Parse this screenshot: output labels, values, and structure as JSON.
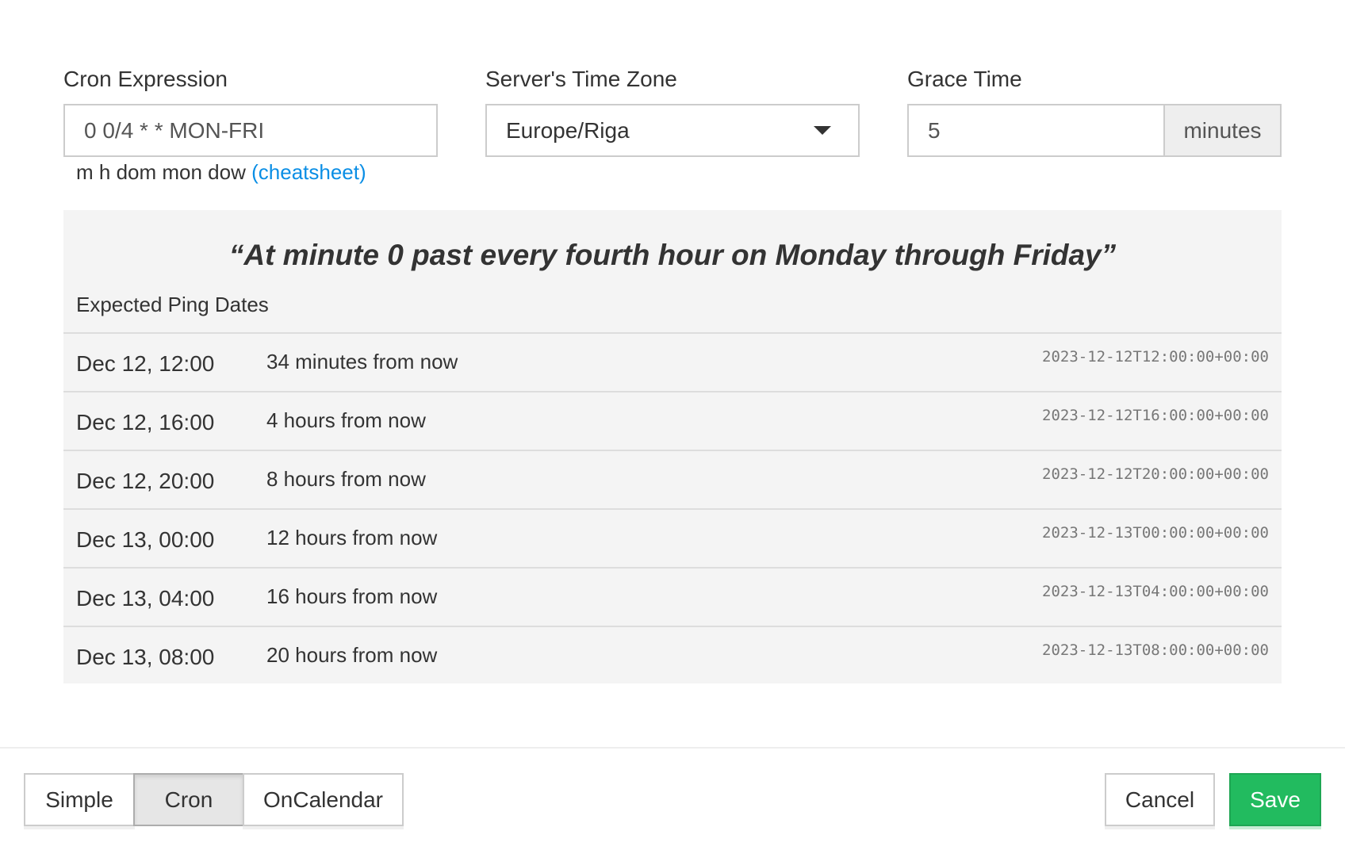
{
  "cron": {
    "label": "Cron Expression",
    "value": "0 0/4 * * MON-FRI",
    "help": "m h dom mon dow",
    "cheatsheet": "(cheatsheet)"
  },
  "timezone": {
    "label": "Server's Time Zone",
    "value": "Europe/Riga",
    "icon": "caret-down-icon"
  },
  "grace": {
    "label": "Grace Time",
    "value": "5",
    "unit": "minutes"
  },
  "preview": {
    "description": "“At minute 0 past every fourth hour on Monday through Friday”",
    "heading": "Expected Ping Dates",
    "rows": [
      {
        "date": "Dec 12, 12:00",
        "relative": "34 minutes from now",
        "iso": "2023-12-12T12:00:00+00:00"
      },
      {
        "date": "Dec 12, 16:00",
        "relative": "4 hours from now",
        "iso": "2023-12-12T16:00:00+00:00"
      },
      {
        "date": "Dec 12, 20:00",
        "relative": "8 hours from now",
        "iso": "2023-12-12T20:00:00+00:00"
      },
      {
        "date": "Dec 13, 00:00",
        "relative": "12 hours from now",
        "iso": "2023-12-13T00:00:00+00:00"
      },
      {
        "date": "Dec 13, 04:00",
        "relative": "16 hours from now",
        "iso": "2023-12-13T04:00:00+00:00"
      },
      {
        "date": "Dec 13, 08:00",
        "relative": "20 hours from now",
        "iso": "2023-12-13T08:00:00+00:00"
      }
    ]
  },
  "footer": {
    "modes": [
      "Simple",
      "Cron",
      "OnCalendar"
    ],
    "active_mode": "Cron",
    "cancel": "Cancel",
    "save": "Save",
    "save_color": "#22bb5f"
  }
}
